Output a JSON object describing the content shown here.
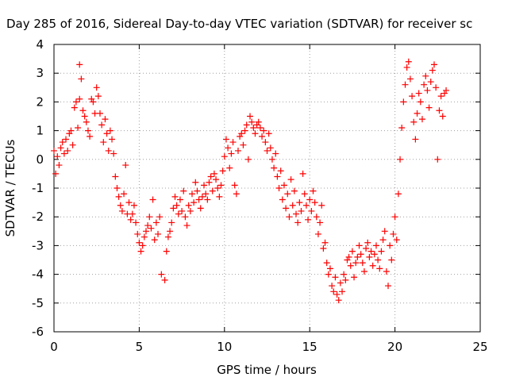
{
  "chart_data": {
    "type": "scatter",
    "title": "Day 285 of 2016, Sidereal Day-to-day VTEC variation (SDTVAR) for receiver sc",
    "xlabel": "GPS time / hours",
    "ylabel": "SDTVAR / TECUs",
    "xlim": [
      0,
      25
    ],
    "ylim": [
      -6,
      4
    ],
    "xticks": [
      "0",
      "5",
      "10",
      "15",
      "20",
      "25"
    ],
    "yticks": [
      "-6",
      "-5",
      "-4",
      "-3",
      "-2",
      "-1",
      "0",
      "1",
      "2",
      "3",
      "4"
    ],
    "grid": true,
    "marker": "+",
    "color": "#ff0000",
    "series": [
      {
        "name": "",
        "points": [
          [
            0.0,
            0.3
          ],
          [
            0.1,
            -0.5
          ],
          [
            0.2,
            0.1
          ],
          [
            0.3,
            -0.2
          ],
          [
            0.4,
            0.4
          ],
          [
            0.5,
            0.6
          ],
          [
            0.6,
            0.2
          ],
          [
            0.7,
            0.7
          ],
          [
            0.8,
            0.3
          ],
          [
            0.9,
            0.9
          ],
          [
            1.0,
            1.0
          ],
          [
            1.1,
            0.5
          ],
          [
            1.2,
            1.8
          ],
          [
            1.3,
            2.0
          ],
          [
            1.4,
            1.1
          ],
          [
            1.5,
            3.3
          ],
          [
            1.5,
            2.1
          ],
          [
            1.6,
            2.8
          ],
          [
            1.7,
            1.7
          ],
          [
            1.8,
            1.5
          ],
          [
            1.9,
            1.3
          ],
          [
            2.0,
            1.0
          ],
          [
            2.1,
            0.8
          ],
          [
            2.2,
            2.1
          ],
          [
            2.3,
            2.0
          ],
          [
            2.4,
            1.6
          ],
          [
            2.5,
            2.5
          ],
          [
            2.6,
            2.2
          ],
          [
            2.7,
            1.6
          ],
          [
            2.8,
            1.2
          ],
          [
            2.9,
            0.6
          ],
          [
            3.0,
            1.4
          ],
          [
            3.1,
            0.9
          ],
          [
            3.2,
            0.3
          ],
          [
            3.3,
            1.0
          ],
          [
            3.4,
            0.7
          ],
          [
            3.5,
            0.2
          ],
          [
            3.6,
            -0.6
          ],
          [
            3.7,
            -1.0
          ],
          [
            3.8,
            -1.3
          ],
          [
            3.9,
            -1.6
          ],
          [
            4.0,
            -1.8
          ],
          [
            4.1,
            -1.2
          ],
          [
            4.2,
            -0.2
          ],
          [
            4.3,
            -1.9
          ],
          [
            4.4,
            -1.5
          ],
          [
            4.5,
            -2.1
          ],
          [
            4.6,
            -1.9
          ],
          [
            4.7,
            -1.6
          ],
          [
            4.8,
            -2.2
          ],
          [
            4.9,
            -2.6
          ],
          [
            5.0,
            -2.9
          ],
          [
            5.1,
            -3.2
          ],
          [
            5.2,
            -3.0
          ],
          [
            5.3,
            -2.7
          ],
          [
            5.4,
            -2.5
          ],
          [
            5.5,
            -2.3
          ],
          [
            5.6,
            -2.0
          ],
          [
            5.7,
            -2.4
          ],
          [
            5.8,
            -1.4
          ],
          [
            5.9,
            -2.8
          ],
          [
            6.0,
            -2.2
          ],
          [
            6.1,
            -2.6
          ],
          [
            6.2,
            -2.0
          ],
          [
            6.3,
            -4.0
          ],
          [
            6.5,
            -4.2
          ],
          [
            6.6,
            -3.2
          ],
          [
            6.7,
            -2.7
          ],
          [
            6.8,
            -2.5
          ],
          [
            6.9,
            -2.2
          ],
          [
            7.0,
            -1.7
          ],
          [
            7.1,
            -1.3
          ],
          [
            7.2,
            -1.6
          ],
          [
            7.3,
            -1.9
          ],
          [
            7.4,
            -1.4
          ],
          [
            7.5,
            -1.8
          ],
          [
            7.6,
            -1.1
          ],
          [
            7.7,
            -2.0
          ],
          [
            7.8,
            -2.3
          ],
          [
            7.9,
            -1.6
          ],
          [
            8.0,
            -1.8
          ],
          [
            8.1,
            -1.2
          ],
          [
            8.2,
            -1.5
          ],
          [
            8.3,
            -0.8
          ],
          [
            8.4,
            -1.1
          ],
          [
            8.5,
            -1.4
          ],
          [
            8.6,
            -1.7
          ],
          [
            8.7,
            -1.3
          ],
          [
            8.8,
            -0.9
          ],
          [
            8.9,
            -1.2
          ],
          [
            9.0,
            -1.4
          ],
          [
            9.1,
            -0.8
          ],
          [
            9.2,
            -0.6
          ],
          [
            9.3,
            -1.1
          ],
          [
            9.4,
            -0.5
          ],
          [
            9.5,
            -0.7
          ],
          [
            9.6,
            -1.0
          ],
          [
            9.7,
            -1.3
          ],
          [
            9.8,
            -0.9
          ],
          [
            9.9,
            -0.4
          ],
          [
            10.0,
            0.1
          ],
          [
            10.1,
            0.7
          ],
          [
            10.2,
            0.4
          ],
          [
            10.3,
            -0.3
          ],
          [
            10.4,
            0.2
          ],
          [
            10.5,
            0.6
          ],
          [
            10.6,
            -0.9
          ],
          [
            10.7,
            -1.2
          ],
          [
            10.8,
            0.3
          ],
          [
            10.9,
            0.8
          ],
          [
            11.0,
            0.9
          ],
          [
            11.1,
            0.5
          ],
          [
            11.2,
            1.0
          ],
          [
            11.3,
            1.2
          ],
          [
            11.4,
            0.0
          ],
          [
            11.5,
            1.5
          ],
          [
            11.6,
            1.3
          ],
          [
            11.7,
            1.1
          ],
          [
            11.8,
            0.9
          ],
          [
            11.9,
            1.2
          ],
          [
            12.0,
            1.3
          ],
          [
            12.1,
            1.1
          ],
          [
            12.2,
            0.8
          ],
          [
            12.3,
            1.0
          ],
          [
            12.4,
            0.6
          ],
          [
            12.5,
            0.3
          ],
          [
            12.6,
            0.9
          ],
          [
            12.7,
            0.4
          ],
          [
            12.8,
            0.0
          ],
          [
            12.9,
            -0.3
          ],
          [
            13.0,
            0.2
          ],
          [
            13.1,
            -0.6
          ],
          [
            13.2,
            -1.0
          ],
          [
            13.3,
            -0.4
          ],
          [
            13.4,
            -1.4
          ],
          [
            13.5,
            -0.9
          ],
          [
            13.6,
            -1.7
          ],
          [
            13.7,
            -1.2
          ],
          [
            13.8,
            -2.0
          ],
          [
            13.9,
            -0.7
          ],
          [
            14.0,
            -1.6
          ],
          [
            14.1,
            -1.1
          ],
          [
            14.2,
            -1.9
          ],
          [
            14.3,
            -2.2
          ],
          [
            14.4,
            -1.5
          ],
          [
            14.5,
            -1.8
          ],
          [
            14.6,
            -0.5
          ],
          [
            14.7,
            -1.2
          ],
          [
            14.8,
            -1.6
          ],
          [
            14.9,
            -2.1
          ],
          [
            15.0,
            -1.4
          ],
          [
            15.1,
            -1.8
          ],
          [
            15.2,
            -1.1
          ],
          [
            15.3,
            -1.5
          ],
          [
            15.4,
            -2.0
          ],
          [
            15.5,
            -2.6
          ],
          [
            15.6,
            -2.2
          ],
          [
            15.7,
            -1.6
          ],
          [
            15.8,
            -3.1
          ],
          [
            15.9,
            -2.9
          ],
          [
            16.0,
            -3.6
          ],
          [
            16.1,
            -4.0
          ],
          [
            16.2,
            -3.8
          ],
          [
            16.3,
            -4.4
          ],
          [
            16.4,
            -4.6
          ],
          [
            16.5,
            -4.1
          ],
          [
            16.6,
            -4.7
          ],
          [
            16.7,
            -4.9
          ],
          [
            16.8,
            -4.3
          ],
          [
            16.9,
            -4.6
          ],
          [
            17.0,
            -4.0
          ],
          [
            17.1,
            -4.2
          ],
          [
            17.2,
            -3.5
          ],
          [
            17.3,
            -3.4
          ],
          [
            17.4,
            -3.7
          ],
          [
            17.5,
            -3.2
          ],
          [
            17.6,
            -4.1
          ],
          [
            17.7,
            -3.6
          ],
          [
            17.8,
            -3.4
          ],
          [
            17.9,
            -3.0
          ],
          [
            18.0,
            -3.3
          ],
          [
            18.1,
            -3.6
          ],
          [
            18.2,
            -3.9
          ],
          [
            18.3,
            -3.1
          ],
          [
            18.4,
            -2.9
          ],
          [
            18.5,
            -3.4
          ],
          [
            18.6,
            -3.2
          ],
          [
            18.7,
            -3.7
          ],
          [
            18.8,
            -3.3
          ],
          [
            18.9,
            -3.0
          ],
          [
            19.0,
            -3.5
          ],
          [
            19.1,
            -3.8
          ],
          [
            19.2,
            -3.2
          ],
          [
            19.3,
            -2.8
          ],
          [
            19.4,
            -2.5
          ],
          [
            19.5,
            -3.9
          ],
          [
            19.6,
            -4.4
          ],
          [
            19.7,
            -3.0
          ],
          [
            19.8,
            -3.5
          ],
          [
            19.9,
            -2.6
          ],
          [
            20.0,
            -2.0
          ],
          [
            20.1,
            -2.8
          ],
          [
            20.2,
            -1.2
          ],
          [
            20.3,
            0.0
          ],
          [
            20.4,
            1.1
          ],
          [
            20.5,
            2.0
          ],
          [
            20.6,
            2.6
          ],
          [
            20.7,
            3.2
          ],
          [
            20.8,
            3.4
          ],
          [
            20.9,
            2.8
          ],
          [
            21.0,
            2.2
          ],
          [
            21.1,
            1.3
          ],
          [
            21.2,
            0.7
          ],
          [
            21.3,
            1.6
          ],
          [
            21.4,
            2.3
          ],
          [
            21.5,
            2.0
          ],
          [
            21.6,
            1.4
          ],
          [
            21.7,
            2.6
          ],
          [
            21.8,
            2.9
          ],
          [
            21.9,
            2.4
          ],
          [
            22.0,
            1.8
          ],
          [
            22.1,
            2.7
          ],
          [
            22.2,
            3.1
          ],
          [
            22.3,
            3.3
          ],
          [
            22.4,
            2.5
          ],
          [
            22.5,
            -0.0
          ],
          [
            22.6,
            1.7
          ],
          [
            22.7,
            2.2
          ],
          [
            22.8,
            1.5
          ],
          [
            22.9,
            2.3
          ],
          [
            23.0,
            2.4
          ]
        ]
      }
    ]
  }
}
